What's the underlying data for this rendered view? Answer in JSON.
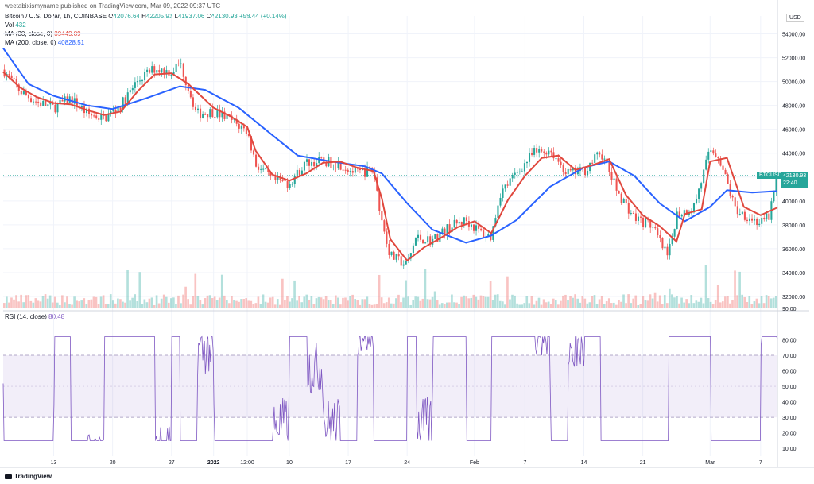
{
  "header": {
    "published": "weetabixismyname published on TradingView.com, Mar 09, 2022 09:37 UTC",
    "symbol": "Bitcoin / U.S. Dollar, 1h, COINBASE",
    "ohlc": {
      "o_label": "O",
      "o": "42076.64",
      "h_label": "H",
      "h": "42205.91",
      "l_label": "L",
      "l": "41937.06",
      "c_label": "C",
      "c": "42130.93",
      "change": "+58.44 (+0.14%)"
    },
    "vol": {
      "label": "Vol",
      "value": "432"
    },
    "ma30": {
      "label": "MA (30, close, 0)",
      "value": "39449.89"
    },
    "ma200": {
      "label": "MA (200, close, 0)",
      "value": "40828.51"
    },
    "rsi": {
      "label": "RSI (14, close)",
      "value": "80.48"
    }
  },
  "currency": "USD",
  "price_chip": {
    "label": "BTCUSD",
    "price": "42130.93",
    "countdown": "22:40"
  },
  "brand": "TradingView",
  "colors": {
    "up": "#26a69a",
    "down": "#ef5350",
    "ma30": "#e0483e",
    "ma200": "#2962ff",
    "rsi": "#7e57c2",
    "rsi_band": "#7e57c2"
  },
  "chart_data": {
    "type": "candlestick",
    "title": "Bitcoin / U.S. Dollar, 1h, COINBASE",
    "price_axis": {
      "ticks": [
        "54000.00",
        "52000.00",
        "50000.00",
        "48000.00",
        "46000.00",
        "44000.00",
        "42000.00",
        "40000.00",
        "38000.00",
        "36000.00",
        "34000.00",
        "32000.00"
      ],
      "tick_values": [
        54000,
        52000,
        50000,
        48000,
        46000,
        44000,
        42000,
        40000,
        38000,
        36000,
        34000,
        32000
      ],
      "range": [
        31000,
        55500
      ]
    },
    "x_axis": {
      "ticks": [
        "13",
        "20",
        "27",
        "2022",
        "12:00",
        "10",
        "17",
        "24",
        "Feb",
        "7",
        "14",
        "21",
        "Mar",
        "7"
      ],
      "tick_dates": [
        "2021-12-13",
        "2021-12-20",
        "2021-12-27",
        "2022-01-01",
        "2022-01-05",
        "2022-01-10",
        "2022-01-17",
        "2022-01-24",
        "2022-02-01",
        "2022-02-07",
        "2022-02-14",
        "2022-02-21",
        "2022-03-01",
        "2022-03-07"
      ],
      "range": [
        "2021-12-07",
        "2022-03-09"
      ]
    },
    "price_path": [
      {
        "date": "2021-12-07",
        "price": 51000
      },
      {
        "date": "2021-12-09",
        "price": 49200
      },
      {
        "date": "2021-12-11",
        "price": 48300
      },
      {
        "date": "2021-12-13",
        "price": 47800
      },
      {
        "date": "2021-12-15",
        "price": 48600
      },
      {
        "date": "2021-12-17",
        "price": 47300
      },
      {
        "date": "2021-12-19",
        "price": 46900
      },
      {
        "date": "2021-12-21",
        "price": 48000
      },
      {
        "date": "2021-12-23",
        "price": 50100
      },
      {
        "date": "2021-12-25",
        "price": 51100
      },
      {
        "date": "2021-12-27",
        "price": 50800
      },
      {
        "date": "2021-12-28",
        "price": 51600
      },
      {
        "date": "2021-12-30",
        "price": 47300
      },
      {
        "date": "2022-01-01",
        "price": 47500
      },
      {
        "date": "2022-01-03",
        "price": 46800
      },
      {
        "date": "2022-01-05",
        "price": 45800
      },
      {
        "date": "2022-01-06",
        "price": 43100
      },
      {
        "date": "2022-01-08",
        "price": 41700
      },
      {
        "date": "2022-01-10",
        "price": 41500
      },
      {
        "date": "2022-01-12",
        "price": 43200
      },
      {
        "date": "2022-01-14",
        "price": 43300
      },
      {
        "date": "2022-01-16",
        "price": 43100
      },
      {
        "date": "2022-01-18",
        "price": 42300
      },
      {
        "date": "2022-01-20",
        "price": 42600
      },
      {
        "date": "2022-01-21",
        "price": 38300
      },
      {
        "date": "2022-01-22",
        "price": 35400
      },
      {
        "date": "2022-01-24",
        "price": 34600
      },
      {
        "date": "2022-01-25",
        "price": 36900
      },
      {
        "date": "2022-01-27",
        "price": 36700
      },
      {
        "date": "2022-01-29",
        "price": 37800
      },
      {
        "date": "2022-01-31",
        "price": 38400
      },
      {
        "date": "2022-02-02",
        "price": 37200
      },
      {
        "date": "2022-02-03",
        "price": 37000
      },
      {
        "date": "2022-02-04",
        "price": 40600
      },
      {
        "date": "2022-02-06",
        "price": 42300
      },
      {
        "date": "2022-02-08",
        "price": 44000
      },
      {
        "date": "2022-02-10",
        "price": 44300
      },
      {
        "date": "2022-02-12",
        "price": 42300
      },
      {
        "date": "2022-02-14",
        "price": 42500
      },
      {
        "date": "2022-02-16",
        "price": 44100
      },
      {
        "date": "2022-02-18",
        "price": 40800
      },
      {
        "date": "2022-02-20",
        "price": 38600
      },
      {
        "date": "2022-02-22",
        "price": 38000
      },
      {
        "date": "2022-02-24",
        "price": 35200
      },
      {
        "date": "2022-02-25",
        "price": 38900
      },
      {
        "date": "2022-02-27",
        "price": 39400
      },
      {
        "date": "2022-02-28",
        "price": 41800
      },
      {
        "date": "2022-03-01",
        "price": 44300
      },
      {
        "date": "2022-03-02",
        "price": 43800
      },
      {
        "date": "2022-03-04",
        "price": 39300
      },
      {
        "date": "2022-03-06",
        "price": 38500
      },
      {
        "date": "2022-03-07",
        "price": 38100
      },
      {
        "date": "2022-03-08",
        "price": 38700
      },
      {
        "date": "2022-03-09",
        "price": 42130
      }
    ],
    "series": [
      {
        "name": "MA (30, close, 0)",
        "color": "#e0483e",
        "points": [
          {
            "date": "2021-12-07",
            "price": 50800
          },
          {
            "date": "2021-12-09",
            "price": 49500
          },
          {
            "date": "2021-12-11",
            "price": 48700
          },
          {
            "date": "2021-12-13",
            "price": 48200
          },
          {
            "date": "2021-12-15",
            "price": 48100
          },
          {
            "date": "2021-12-17",
            "price": 47600
          },
          {
            "date": "2021-12-19",
            "price": 47200
          },
          {
            "date": "2021-12-21",
            "price": 47500
          },
          {
            "date": "2021-12-23",
            "price": 49200
          },
          {
            "date": "2021-12-25",
            "price": 50600
          },
          {
            "date": "2021-12-27",
            "price": 50700
          },
          {
            "date": "2021-12-29",
            "price": 49800
          },
          {
            "date": "2022-01-01",
            "price": 47800
          },
          {
            "date": "2022-01-03",
            "price": 47100
          },
          {
            "date": "2022-01-05",
            "price": 46200
          },
          {
            "date": "2022-01-06",
            "price": 44200
          },
          {
            "date": "2022-01-08",
            "price": 42200
          },
          {
            "date": "2022-01-10",
            "price": 41700
          },
          {
            "date": "2022-01-12",
            "price": 42300
          },
          {
            "date": "2022-01-14",
            "price": 43200
          },
          {
            "date": "2022-01-16",
            "price": 43300
          },
          {
            "date": "2022-01-18",
            "price": 42800
          },
          {
            "date": "2022-01-20",
            "price": 42500
          },
          {
            "date": "2022-01-21",
            "price": 40200
          },
          {
            "date": "2022-01-22",
            "price": 36800
          },
          {
            "date": "2022-01-24",
            "price": 35000
          },
          {
            "date": "2022-01-26",
            "price": 36100
          },
          {
            "date": "2022-01-28",
            "price": 36900
          },
          {
            "date": "2022-01-30",
            "price": 37800
          },
          {
            "date": "2022-02-01",
            "price": 38300
          },
          {
            "date": "2022-02-03",
            "price": 37300
          },
          {
            "date": "2022-02-05",
            "price": 40100
          },
          {
            "date": "2022-02-07",
            "price": 42100
          },
          {
            "date": "2022-02-09",
            "price": 43600
          },
          {
            "date": "2022-02-11",
            "price": 43800
          },
          {
            "date": "2022-02-13",
            "price": 42600
          },
          {
            "date": "2022-02-15",
            "price": 43000
          },
          {
            "date": "2022-02-17",
            "price": 43500
          },
          {
            "date": "2022-02-19",
            "price": 40500
          },
          {
            "date": "2022-02-21",
            "price": 38800
          },
          {
            "date": "2022-02-23",
            "price": 37900
          },
          {
            "date": "2022-02-25",
            "price": 36600
          },
          {
            "date": "2022-02-26",
            "price": 38900
          },
          {
            "date": "2022-02-28",
            "price": 39300
          },
          {
            "date": "2022-03-01",
            "price": 43300
          },
          {
            "date": "2022-03-03",
            "price": 43600
          },
          {
            "date": "2022-03-05",
            "price": 39500
          },
          {
            "date": "2022-03-07",
            "price": 38800
          },
          {
            "date": "2022-03-09",
            "price": 39449
          }
        ]
      },
      {
        "name": "MA (200, close, 0)",
        "color": "#2962ff",
        "points": [
          {
            "date": "2021-12-07",
            "price": 52800
          },
          {
            "date": "2021-12-10",
            "price": 49800
          },
          {
            "date": "2021-12-13",
            "price": 48800
          },
          {
            "date": "2021-12-17",
            "price": 48000
          },
          {
            "date": "2021-12-20",
            "price": 47700
          },
          {
            "date": "2021-12-24",
            "price": 48600
          },
          {
            "date": "2021-12-28",
            "price": 49600
          },
          {
            "date": "2021-12-31",
            "price": 49300
          },
          {
            "date": "2022-01-04",
            "price": 47800
          },
          {
            "date": "2022-01-08",
            "price": 45500
          },
          {
            "date": "2022-01-11",
            "price": 43800
          },
          {
            "date": "2022-01-15",
            "price": 43300
          },
          {
            "date": "2022-01-19",
            "price": 42900
          },
          {
            "date": "2022-01-21",
            "price": 42300
          },
          {
            "date": "2022-01-24",
            "price": 39800
          },
          {
            "date": "2022-01-27",
            "price": 37600
          },
          {
            "date": "2022-01-31",
            "price": 36500
          },
          {
            "date": "2022-02-03",
            "price": 37100
          },
          {
            "date": "2022-02-06",
            "price": 38400
          },
          {
            "date": "2022-02-10",
            "price": 41200
          },
          {
            "date": "2022-02-14",
            "price": 42800
          },
          {
            "date": "2022-02-17",
            "price": 43300
          },
          {
            "date": "2022-02-20",
            "price": 42100
          },
          {
            "date": "2022-02-23",
            "price": 39800
          },
          {
            "date": "2022-02-26",
            "price": 38300
          },
          {
            "date": "2022-03-01",
            "price": 39500
          },
          {
            "date": "2022-03-03",
            "price": 40900
          },
          {
            "date": "2022-03-06",
            "price": 40700
          },
          {
            "date": "2022-03-09",
            "price": 40828
          }
        ]
      }
    ],
    "rsi": {
      "name": "RSI (14, close)",
      "axis_ticks": [
        "80.00",
        "70.00",
        "60.00",
        "50.00",
        "40.00",
        "30.00",
        "20.00",
        "10.00"
      ],
      "tick_values": [
        80,
        70,
        60,
        50,
        40,
        30,
        20,
        10
      ],
      "range": [
        5,
        92
      ],
      "band": [
        30,
        70
      ],
      "midline": 50,
      "last": 80.48
    },
    "volume_axis_label": "90.00"
  }
}
